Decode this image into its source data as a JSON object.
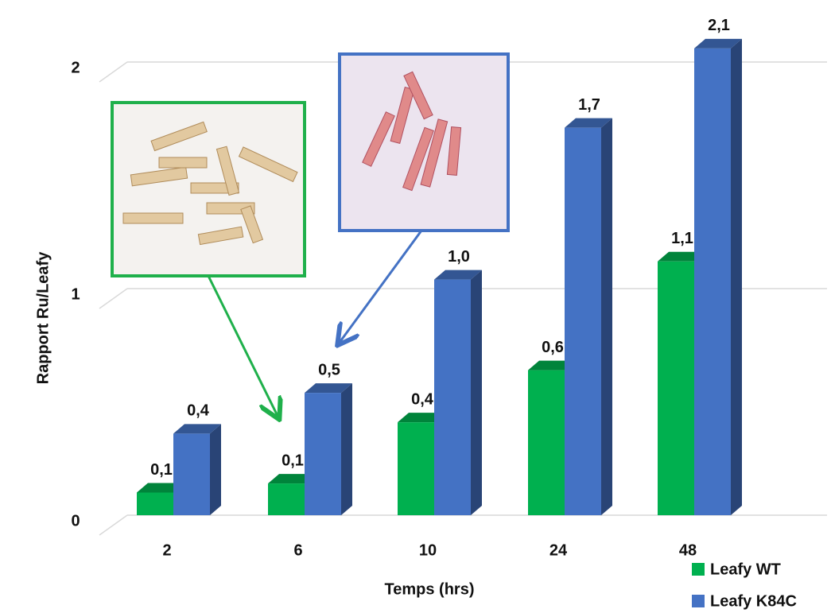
{
  "chart_data": {
    "type": "bar",
    "x_label": "Temps (hrs)",
    "y_label": "Rapport  Ru/Leafy",
    "categories": [
      "2",
      "6",
      "10",
      "24",
      "48"
    ],
    "series": [
      {
        "name": "Leafy WT",
        "color": "#00b04f",
        "values": [
          0.1,
          0.14,
          0.41,
          0.64,
          1.12
        ],
        "value_labels": [
          "0,1",
          "0,1",
          "0,4",
          "0,6",
          "1,1"
        ]
      },
      {
        "name": "Leafy K84C",
        "color": "#4472c4",
        "values": [
          0.36,
          0.54,
          1.04,
          1.71,
          2.06
        ],
        "value_labels": [
          "0,4",
          "0,5",
          "1,0",
          "1,7",
          "2,1"
        ]
      }
    ],
    "ylim": [
      0,
      2.1
    ],
    "yticks": [
      0,
      1,
      2
    ],
    "grid": true,
    "legend": "bottom-right"
  }
}
